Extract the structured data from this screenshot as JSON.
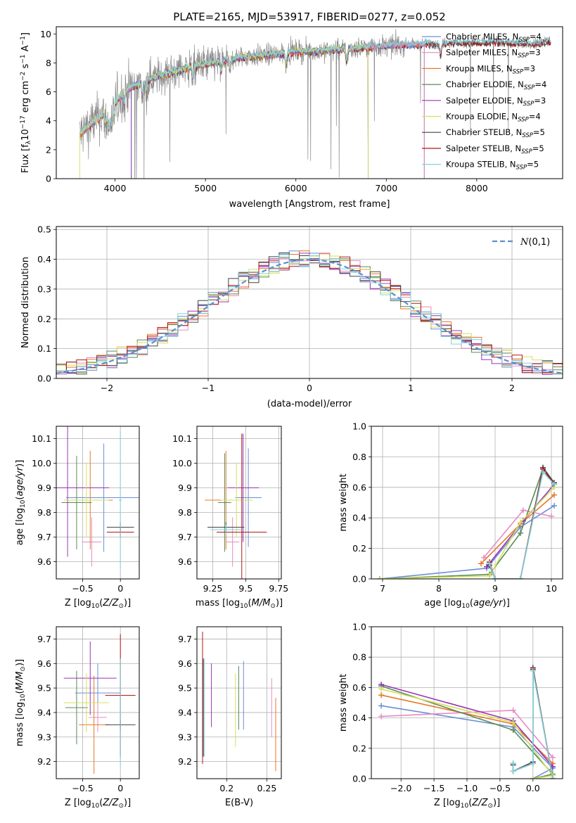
{
  "colors": {
    "chabrier_miles": "#4c72b0",
    "salpeter_miles": "#e377c2",
    "kroupa_miles": "#ff7f0e",
    "chabrier_elodie": "#2ca02c",
    "salpeter_elodie": "#9467bd",
    "kroupa_elodie": "#bcbd22",
    "chabrier_stelib": "#333333",
    "salpeter_stelib": "#d62728",
    "kroupa_stelib": "#6fd0d8",
    "data": "#808080",
    "normal": "#5b8fd4"
  },
  "models": [
    {
      "key": "chabrier_miles",
      "label": "Chabrier MILES, N",
      "sub": "SSP",
      "n": "=4",
      "color": "#6a8fd6"
    },
    {
      "key": "salpeter_miles",
      "label": "Salpeter MILES, N",
      "sub": "SSP",
      "n": "=3",
      "color": "#e68bc4"
    },
    {
      "key": "kroupa_miles",
      "label": "Kroupa MILES, N",
      "sub": "SSP",
      "n": "=3",
      "color": "#e8782a"
    },
    {
      "key": "chabrier_elodie",
      "label": "Chabrier ELODIE, N",
      "sub": "SSP",
      "n": "=4",
      "color": "#5a8a5a"
    },
    {
      "key": "salpeter_elodie",
      "label": "Salpeter ELODIE, N",
      "sub": "SSP",
      "n": "=3",
      "color": "#9a35b5"
    },
    {
      "key": "kroupa_elodie",
      "label": "Kroupa ELODIE, N",
      "sub": "SSP",
      "n": "=4",
      "color": "#d4e05a"
    },
    {
      "key": "chabrier_stelib",
      "label": "Chabrier STELIB, N",
      "sub": "SSP",
      "n": "=5",
      "color": "#444444"
    },
    {
      "key": "salpeter_stelib",
      "label": "Salpeter STELIB, N",
      "sub": "SSP",
      "n": "=5",
      "color": "#b01818"
    },
    {
      "key": "kroupa_stelib",
      "label": "Kroupa STELIB, N",
      "sub": "SSP",
      "n": "=5",
      "color": "#7fd3dc"
    }
  ],
  "chart_data": [
    {
      "id": "spectrum",
      "type": "line",
      "title": "PLATE=2165, MJD=53917, FIBERID=0277, z=0.052",
      "xlabel": "wavelength [Angstrom, rest frame]",
      "ylabel": "Flux [f_λ10^-17 erg cm^-2 s^-1 A^-1]",
      "ylabel_parts": {
        "a": "Flux [f",
        "b": "λ",
        "c": "10",
        "d": "−17",
        "e": " erg cm",
        "f": "−2",
        "g": " s",
        "h": "−1",
        "i": " A",
        "j": "−1",
        "k": "]"
      },
      "xlim": [
        3350,
        8950
      ],
      "ylim": [
        0,
        10.5
      ],
      "xticks": [
        4000,
        5000,
        6000,
        7000,
        8000
      ],
      "yticks": [
        0,
        2,
        4,
        6,
        8,
        10
      ],
      "grid": false,
      "legend": "upper right",
      "continuum": {
        "x": [
          3600,
          3700,
          3800,
          3900,
          4000,
          4100,
          4200,
          4400,
          4600,
          4800,
          5000,
          5200,
          5400,
          5600,
          5800,
          6000,
          6200,
          6400,
          6600,
          6800,
          7000,
          7200,
          7400,
          7600,
          7800,
          8000,
          8200,
          8400,
          8600,
          8800
        ],
        "y": [
          3.0,
          3.6,
          4.1,
          4.6,
          5.2,
          6.0,
          6.4,
          6.9,
          7.3,
          7.7,
          7.9,
          8.2,
          8.4,
          8.5,
          8.6,
          8.8,
          8.8,
          8.9,
          9.0,
          9.1,
          9.2,
          9.25,
          9.3,
          9.35,
          9.4,
          9.4,
          9.45,
          9.4,
          9.3,
          9.5
        ]
      }
    },
    {
      "id": "residuals",
      "type": "histogram",
      "xlabel": "(data-model)/error",
      "ylabel": "Normed distribution",
      "xlim": [
        -2.5,
        2.5
      ],
      "ylim": [
        0,
        0.51
      ],
      "xticks": [
        -2,
        -1,
        0,
        1,
        2
      ],
      "yticks": [
        0.0,
        0.1,
        0.2,
        0.3,
        0.4,
        0.5
      ],
      "grid": true,
      "legend": "upper right",
      "normal_label": "N(0,1)",
      "bin_width": 0.1
    },
    {
      "id": "age_vs_Z",
      "type": "errorbar",
      "xlabel": "Z [log10(Z/Z⊙)]",
      "ylabel": "age  [log10(age/yr)]",
      "xlim": [
        -0.85,
        0.25
      ],
      "ylim": [
        9.53,
        10.15
      ],
      "xticks": [
        -0.5,
        0.0
      ],
      "yticks": [
        9.6,
        9.7,
        9.8,
        9.9,
        10.0,
        10.1
      ],
      "grid": true,
      "points": [
        {
          "m": "chabrier_miles",
          "x": -0.22,
          "xerr": 0.5,
          "y": 9.86,
          "yerr": 0.22
        },
        {
          "m": "salpeter_miles",
          "x": -0.38,
          "xerr": 0.13,
          "y": 9.68,
          "yerr": 0.1
        },
        {
          "m": "kroupa_miles",
          "x": -0.4,
          "xerr": 0.3,
          "y": 9.85,
          "yerr": 0.2
        },
        {
          "m": "chabrier_elodie",
          "x": -0.58,
          "xerr": 0.2,
          "y": 9.84,
          "yerr": 0.19
        },
        {
          "m": "salpeter_elodie",
          "x": -0.7,
          "xerr": 0.55,
          "y": 9.9,
          "yerr": 0.28
        },
        {
          "m": "kroupa_elodie",
          "x": -0.45,
          "xerr": 0.3,
          "y": 9.85,
          "yerr": 0.15
        },
        {
          "m": "chabrier_stelib",
          "x": 0.0,
          "xerr": 0.18,
          "y": 9.74,
          "yerr": 0.02
        },
        {
          "m": "salpeter_stelib",
          "x": 0.0,
          "xerr": 0.18,
          "y": 9.72,
          "yerr": 0.02
        },
        {
          "m": "kroupa_stelib",
          "x": 0.0,
          "xerr": 0.02,
          "y": 9.85,
          "yerr": 0.28
        }
      ]
    },
    {
      "id": "age_vs_mass",
      "type": "errorbar",
      "xlabel": "mass [log10(M/M⊙)]",
      "ylabel": "",
      "xlim": [
        9.13,
        9.77
      ],
      "ylim": [
        9.53,
        10.15
      ],
      "xticks": [
        9.25,
        9.5,
        9.75
      ],
      "yticks": [
        9.6,
        9.7,
        9.8,
        9.9,
        10.0,
        10.1
      ],
      "grid": true,
      "points": [
        {
          "m": "chabrier_miles",
          "x": 9.52,
          "xerr": 0.1,
          "y": 9.86,
          "yerr": 0.2
        },
        {
          "m": "salpeter_miles",
          "x": 9.4,
          "xerr": 0.05,
          "y": 9.68,
          "yerr": 0.1
        },
        {
          "m": "kroupa_miles",
          "x": 9.35,
          "xerr": 0.16,
          "y": 9.85,
          "yerr": 0.2
        },
        {
          "m": "chabrier_elodie",
          "x": 9.34,
          "xerr": 0.05,
          "y": 9.84,
          "yerr": 0.2
        },
        {
          "m": "salpeter_elodie",
          "x": 9.48,
          "xerr": 0.12,
          "y": 9.9,
          "yerr": 0.22
        },
        {
          "m": "kroupa_elodie",
          "x": 9.43,
          "xerr": 0.12,
          "y": 9.85,
          "yerr": 0.15
        },
        {
          "m": "chabrier_stelib",
          "x": 9.35,
          "xerr": 0.14,
          "y": 9.74,
          "yerr": 0.02
        },
        {
          "m": "salpeter_stelib",
          "x": 9.47,
          "xerr": 0.19,
          "y": 9.72,
          "yerr": 0.4
        },
        {
          "m": "kroupa_stelib",
          "x": 9.35,
          "xerr": 0.12,
          "y": 9.73,
          "yerr": 0.02
        }
      ]
    },
    {
      "id": "weight_vs_age",
      "type": "line",
      "xlabel": "age  [log10(age/yr)]",
      "ylabel": "mass weight",
      "xlim": [
        6.8,
        10.2
      ],
      "ylim": [
        0,
        1.0
      ],
      "xticks": [
        7,
        8,
        9,
        10
      ],
      "yticks": [
        0.0,
        0.2,
        0.4,
        0.6,
        0.8,
        1.0
      ],
      "grid": true,
      "series": [
        {
          "m": "chabrier_miles",
          "x": [
            6.95,
            8.85,
            9.45,
            10.05
          ],
          "y": [
            0.0,
            0.07,
            0.34,
            0.48
          ]
        },
        {
          "m": "salpeter_miles",
          "x": [
            8.8,
            9.5,
            10.0
          ],
          "y": [
            0.14,
            0.45,
            0.41
          ]
        },
        {
          "m": "kroupa_miles",
          "x": [
            8.75,
            9.45,
            10.05
          ],
          "y": [
            0.1,
            0.36,
            0.55
          ]
        },
        {
          "m": "chabrier_elodie",
          "x": [
            6.95,
            8.9,
            9.45,
            9.85
          ],
          "y": [
            0.0,
            0.03,
            0.3,
            0.72
          ]
        },
        {
          "m": "salpeter_elodie",
          "x": [
            8.85,
            9.5,
            10.05
          ],
          "y": [
            0.08,
            0.38,
            0.62
          ]
        },
        {
          "m": "kroupa_elodie",
          "x": [
            6.95,
            8.9,
            9.45,
            10.05
          ],
          "y": [
            0.0,
            0.02,
            0.37,
            0.6
          ]
        },
        {
          "m": "chabrier_stelib",
          "x": [
            8.9,
            9.0,
            9.45,
            9.85,
            10.05
          ],
          "y": [
            0.09,
            0.0,
            0.0,
            0.73,
            0.63
          ]
        },
        {
          "m": "salpeter_stelib",
          "x": [
            8.9,
            9.0,
            9.45,
            9.85,
            10.05
          ],
          "y": [
            0.11,
            0.0,
            0.0,
            0.72,
            0.62
          ]
        },
        {
          "m": "kroupa_stelib",
          "x": [
            8.9,
            9.0,
            9.45,
            9.85,
            10.05
          ],
          "y": [
            0.1,
            0.0,
            0.0,
            0.7,
            0.62
          ]
        }
      ]
    },
    {
      "id": "mass_vs_Z",
      "type": "errorbar",
      "xlabel": "Z [log10(Z/Z⊙)]",
      "ylabel": "mass [log10(M/M⊙)]",
      "xlim": [
        -0.85,
        0.25
      ],
      "ylim": [
        9.13,
        9.75
      ],
      "xticks": [
        -0.5,
        0.0
      ],
      "yticks": [
        9.2,
        9.3,
        9.4,
        9.5,
        9.6,
        9.7
      ],
      "grid": true,
      "points": [
        {
          "m": "chabrier_miles",
          "x": -0.3,
          "xerr": 0.3,
          "y": 9.48,
          "yerr": 0.12
        },
        {
          "m": "salpeter_miles",
          "x": -0.3,
          "xerr": 0.12,
          "y": 9.38,
          "yerr": 0.06
        },
        {
          "m": "kroupa_miles",
          "x": -0.35,
          "xerr": 0.2,
          "y": 9.35,
          "yerr": 0.2
        },
        {
          "m": "chabrier_elodie",
          "x": -0.58,
          "xerr": 0.15,
          "y": 9.42,
          "yerr": 0.15
        },
        {
          "m": "salpeter_elodie",
          "x": -0.4,
          "xerr": 0.35,
          "y": 9.54,
          "yerr": 0.15
        },
        {
          "m": "kroupa_elodie",
          "x": -0.45,
          "xerr": 0.3,
          "y": 9.44,
          "yerr": 0.12
        },
        {
          "m": "chabrier_stelib",
          "x": 0.0,
          "xerr": 0.2,
          "y": 9.35,
          "yerr": 0.02
        },
        {
          "m": "salpeter_stelib",
          "x": 0.0,
          "xerr": 0.2,
          "y": 9.47,
          "yerr": 0.25
        },
        {
          "m": "kroupa_stelib",
          "x": 0.0,
          "xerr": 0.02,
          "y": 9.4,
          "yerr": 0.22
        }
      ]
    },
    {
      "id": "mass_vs_ebv",
      "type": "errorbar",
      "xlabel": "E(B-V)",
      "ylabel": "",
      "xlim": [
        0.163,
        0.268
      ],
      "ylim": [
        9.13,
        9.75
      ],
      "xticks": [
        0.2,
        0.25
      ],
      "yticks": [
        9.2,
        9.3,
        9.4,
        9.5,
        9.6,
        9.7
      ],
      "grid": true,
      "points": [
        {
          "m": "chabrier_miles",
          "x": 0.221,
          "xerr": 0.0,
          "y": 9.47,
          "yerr": 0.14
        },
        {
          "m": "salpeter_miles",
          "x": 0.256,
          "xerr": 0.0,
          "y": 9.42,
          "yerr": 0.12
        },
        {
          "m": "kroupa_miles",
          "x": 0.261,
          "xerr": 0.0,
          "y": 9.31,
          "yerr": 0.15
        },
        {
          "m": "chabrier_elodie",
          "x": 0.215,
          "xerr": 0.0,
          "y": 9.46,
          "yerr": 0.13
        },
        {
          "m": "salpeter_elodie",
          "x": 0.181,
          "xerr": 0.0,
          "y": 9.47,
          "yerr": 0.13
        },
        {
          "m": "kroupa_elodie",
          "x": 0.211,
          "xerr": 0.0,
          "y": 9.41,
          "yerr": 0.15
        },
        {
          "m": "chabrier_stelib",
          "x": 0.171,
          "xerr": 0.0,
          "y": 9.42,
          "yerr": 0.2
        },
        {
          "m": "salpeter_stelib",
          "x": 0.17,
          "xerr": 0.0,
          "y": 9.46,
          "yerr": 0.27
        },
        {
          "m": "kroupa_stelib",
          "x": 0.172,
          "xerr": 0.0,
          "y": 9.42,
          "yerr": 0.2
        }
      ]
    },
    {
      "id": "weight_vs_Z",
      "type": "line",
      "xlabel": "Z [log10(Z/Z⊙)]",
      "ylabel": "mass weight",
      "xlim": [
        -2.45,
        0.45
      ],
      "ylim": [
        0,
        1.0
      ],
      "xticks": [
        -2.0,
        -1.5,
        -1.0,
        -0.5,
        0.0
      ],
      "xticklabels": [
        "−2.0",
        "−1.5",
        "−1.0",
        "−0.5",
        "0.0"
      ],
      "yticks": [
        0.0,
        0.2,
        0.4,
        0.6,
        0.8,
        1.0
      ],
      "grid": true,
      "series": [
        {
          "m": "chabrier_miles",
          "x": [
            -2.3,
            -0.3,
            0.3,
            0.0
          ],
          "y": [
            0.48,
            0.34,
            0.07,
            0.0
          ]
        },
        {
          "m": "salpeter_miles",
          "x": [
            -2.3,
            -0.3,
            0.3
          ],
          "y": [
            0.41,
            0.45,
            0.14
          ]
        },
        {
          "m": "kroupa_miles",
          "x": [
            -2.3,
            -0.3,
            0.3
          ],
          "y": [
            0.55,
            0.36,
            0.1
          ]
        },
        {
          "m": "chabrier_elodie",
          "x": [
            -2.3,
            -0.3,
            0.3,
            0.0
          ],
          "y": [
            0.61,
            0.32,
            0.03,
            0.0
          ]
        },
        {
          "m": "salpeter_elodie",
          "x": [
            -2.3,
            -0.3,
            0.3
          ],
          "y": [
            0.62,
            0.38,
            0.08
          ]
        },
        {
          "m": "kroupa_elodie",
          "x": [
            -2.3,
            -0.3,
            0.3,
            0.0
          ],
          "y": [
            0.59,
            0.37,
            0.02,
            0.0
          ]
        },
        {
          "m": "chabrier_stelib",
          "x": [
            -0.3,
            -0.3,
            0.0,
            0.0,
            0.3
          ],
          "y": [
            0.09,
            0.05,
            0.11,
            0.73,
            0.0
          ]
        },
        {
          "m": "salpeter_stelib",
          "x": [
            -0.3,
            -0.3,
            0.0,
            0.0,
            0.3
          ],
          "y": [
            0.1,
            0.05,
            0.1,
            0.72,
            0.0
          ]
        },
        {
          "m": "kroupa_stelib",
          "x": [
            -0.3,
            -0.3,
            0.0,
            0.0,
            0.3
          ],
          "y": [
            0.1,
            0.05,
            0.1,
            0.71,
            0.0
          ]
        }
      ]
    }
  ]
}
